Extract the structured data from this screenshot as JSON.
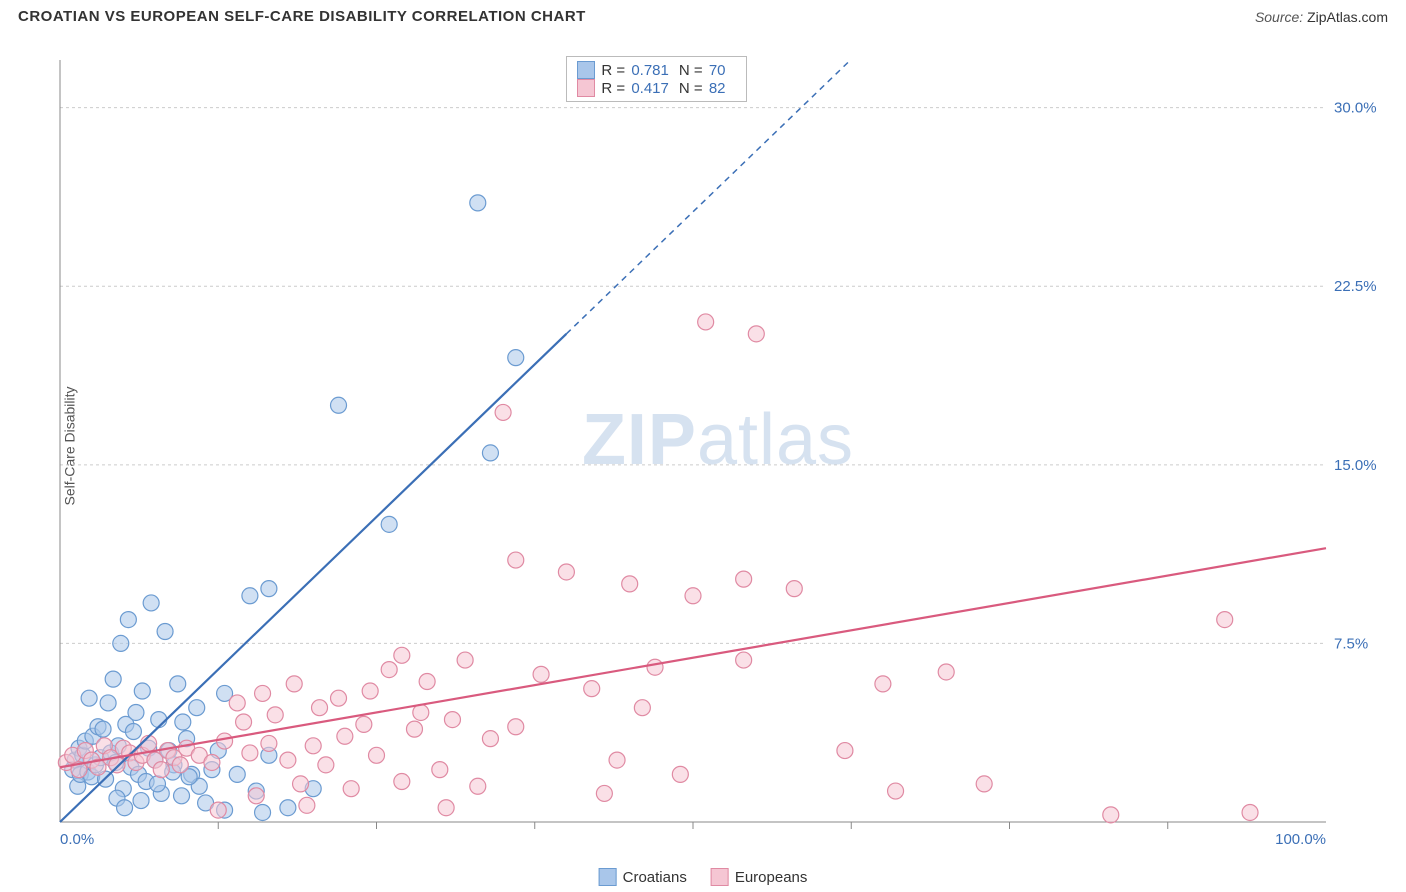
{
  "header": {
    "title": "CROATIAN VS EUROPEAN SELF-CARE DISABILITY CORRELATION CHART",
    "source_label": "Source:",
    "source_value": "ZipAtlas.com"
  },
  "yaxis_label": "Self-Care Disability",
  "watermark": {
    "bold": "ZIP",
    "rest": "atlas"
  },
  "chart": {
    "type": "scatter",
    "xlim": [
      0,
      100
    ],
    "ylim": [
      0,
      32
    ],
    "xtick_step": 12.5,
    "yticks": [
      7.5,
      15.0,
      22.5,
      30.0
    ],
    "ytick_labels": [
      "7.5%",
      "15.0%",
      "22.5%",
      "30.0%"
    ],
    "xlabel_min": "0.0%",
    "xlabel_max": "100.0%",
    "grid_color": "#cccccc",
    "axis_color": "#888888",
    "background_color": "#ffffff",
    "marker_radius": 8,
    "marker_opacity": 0.55,
    "series": [
      {
        "name": "Croatians",
        "color_fill": "#a9c6ea",
        "color_stroke": "#6b9bd1",
        "line_color": "#3b6fb6",
        "R": "0.781",
        "N": "70",
        "regression": {
          "x1": 0,
          "y1": 0,
          "x2": 40,
          "y2": 20.5,
          "dash_after_x": 40
        },
        "points": [
          [
            1,
            2.2
          ],
          [
            1.2,
            2.6
          ],
          [
            1.4,
            1.5
          ],
          [
            1.5,
            3.1
          ],
          [
            1.6,
            2.0
          ],
          [
            1.8,
            2.8
          ],
          [
            2,
            3.4
          ],
          [
            2.2,
            2.1
          ],
          [
            2.3,
            5.2
          ],
          [
            2.5,
            1.9
          ],
          [
            2.6,
            3.6
          ],
          [
            2.8,
            2.4
          ],
          [
            3,
            4.0
          ],
          [
            3.2,
            2.7
          ],
          [
            3.4,
            3.9
          ],
          [
            3.6,
            1.8
          ],
          [
            3.8,
            5.0
          ],
          [
            4,
            2.9
          ],
          [
            4.2,
            6.0
          ],
          [
            4.4,
            2.5
          ],
          [
            4.6,
            3.2
          ],
          [
            4.8,
            7.5
          ],
          [
            5,
            1.4
          ],
          [
            5.2,
            4.1
          ],
          [
            5.4,
            8.5
          ],
          [
            5.6,
            2.3
          ],
          [
            5.8,
            3.8
          ],
          [
            6,
            4.6
          ],
          [
            6.2,
            2.0
          ],
          [
            6.5,
            5.5
          ],
          [
            6.8,
            1.7
          ],
          [
            7,
            3.1
          ],
          [
            7.2,
            9.2
          ],
          [
            7.5,
            2.6
          ],
          [
            7.8,
            4.3
          ],
          [
            8,
            1.2
          ],
          [
            8.3,
            8.0
          ],
          [
            8.6,
            3.0
          ],
          [
            9,
            2.4
          ],
          [
            9.3,
            5.8
          ],
          [
            9.6,
            1.1
          ],
          [
            10,
            3.5
          ],
          [
            10.4,
            2.0
          ],
          [
            10.8,
            4.8
          ],
          [
            11,
            1.5
          ],
          [
            11.5,
            0.8
          ],
          [
            12,
            2.2
          ],
          [
            12.5,
            3.0
          ],
          [
            13,
            5.4
          ],
          [
            13,
            0.5
          ],
          [
            14,
            2.0
          ],
          [
            15,
            9.5
          ],
          [
            15.5,
            1.3
          ],
          [
            16,
            0.4
          ],
          [
            16.5,
            2.8
          ],
          [
            16.5,
            9.8
          ],
          [
            18,
            0.6
          ],
          [
            20,
            1.4
          ],
          [
            22,
            17.5
          ],
          [
            26,
            12.5
          ],
          [
            33,
            26.0
          ],
          [
            34,
            15.5
          ],
          [
            36,
            19.5
          ],
          [
            4.5,
            1.0
          ],
          [
            5.1,
            0.6
          ],
          [
            6.4,
            0.9
          ],
          [
            7.7,
            1.6
          ],
          [
            8.9,
            2.1
          ],
          [
            9.7,
            4.2
          ],
          [
            10.2,
            1.9
          ]
        ]
      },
      {
        "name": "Europeans",
        "color_fill": "#f5c6d3",
        "color_stroke": "#e08aa3",
        "line_color": "#d95a7e",
        "R": "0.417",
        "N": "82",
        "regression": {
          "x1": 0,
          "y1": 2.3,
          "x2": 100,
          "y2": 11.5
        },
        "points": [
          [
            0.5,
            2.5
          ],
          [
            1,
            2.8
          ],
          [
            1.5,
            2.2
          ],
          [
            2,
            3.0
          ],
          [
            2.5,
            2.6
          ],
          [
            3,
            2.3
          ],
          [
            3.5,
            3.2
          ],
          [
            4,
            2.7
          ],
          [
            4.5,
            2.4
          ],
          [
            5,
            3.1
          ],
          [
            5.5,
            2.9
          ],
          [
            6,
            2.5
          ],
          [
            6.5,
            2.8
          ],
          [
            7,
            3.3
          ],
          [
            7.5,
            2.6
          ],
          [
            8,
            2.2
          ],
          [
            8.5,
            3.0
          ],
          [
            9,
            2.7
          ],
          [
            9.5,
            2.4
          ],
          [
            10,
            3.1
          ],
          [
            11,
            2.8
          ],
          [
            12,
            2.5
          ],
          [
            13,
            3.4
          ],
          [
            14,
            5.0
          ],
          [
            14.5,
            4.2
          ],
          [
            15,
            2.9
          ],
          [
            16,
            5.4
          ],
          [
            16.5,
            3.3
          ],
          [
            17,
            4.5
          ],
          [
            18,
            2.6
          ],
          [
            18.5,
            5.8
          ],
          [
            19,
            1.6
          ],
          [
            20,
            3.2
          ],
          [
            20.5,
            4.8
          ],
          [
            21,
            2.4
          ],
          [
            22,
            5.2
          ],
          [
            22.5,
            3.6
          ],
          [
            23,
            1.4
          ],
          [
            24,
            4.1
          ],
          [
            24.5,
            5.5
          ],
          [
            25,
            2.8
          ],
          [
            26,
            6.4
          ],
          [
            27,
            1.7
          ],
          [
            27,
            7.0
          ],
          [
            28,
            3.9
          ],
          [
            28.5,
            4.6
          ],
          [
            29,
            5.9
          ],
          [
            30,
            2.2
          ],
          [
            31,
            4.3
          ],
          [
            32,
            6.8
          ],
          [
            33,
            1.5
          ],
          [
            34,
            3.5
          ],
          [
            35,
            17.2
          ],
          [
            36,
            4.0
          ],
          [
            36,
            11.0
          ],
          [
            38,
            6.2
          ],
          [
            40,
            10.5
          ],
          [
            42,
            5.6
          ],
          [
            43,
            1.2
          ],
          [
            44,
            2.6
          ],
          [
            45,
            10.0
          ],
          [
            46,
            4.8
          ],
          [
            47,
            6.5
          ],
          [
            49,
            2.0
          ],
          [
            50,
            9.5
          ],
          [
            51,
            21.0
          ],
          [
            54,
            10.2
          ],
          [
            54,
            6.8
          ],
          [
            55,
            20.5
          ],
          [
            58,
            9.8
          ],
          [
            62,
            3.0
          ],
          [
            65,
            5.8
          ],
          [
            66,
            1.3
          ],
          [
            70,
            6.3
          ],
          [
            73,
            1.6
          ],
          [
            83,
            0.3
          ],
          [
            92,
            8.5
          ],
          [
            94,
            0.4
          ],
          [
            12.5,
            0.5
          ],
          [
            15.5,
            1.1
          ],
          [
            19.5,
            0.7
          ],
          [
            30.5,
            0.6
          ]
        ]
      }
    ]
  },
  "top_legend": {
    "R_label": "R =",
    "N_label": "N ="
  },
  "bottom_legend": {
    "items": [
      "Croatians",
      "Europeans"
    ]
  }
}
